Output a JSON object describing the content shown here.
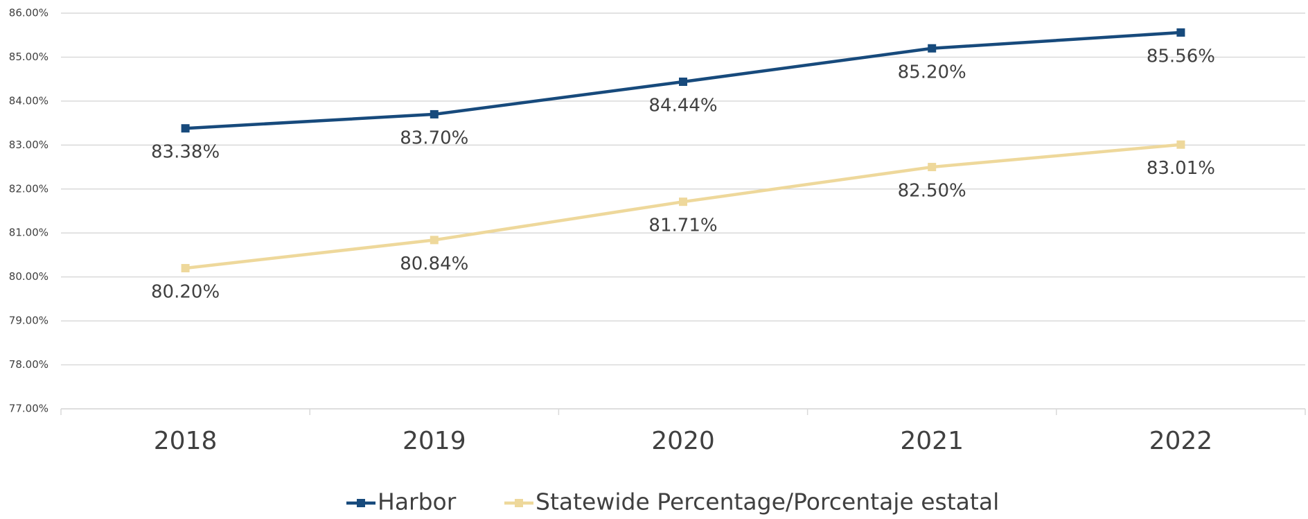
{
  "chart_data": {
    "type": "line",
    "categories": [
      "2018",
      "2019",
      "2020",
      "2021",
      "2022"
    ],
    "series": [
      {
        "name": "Harbor",
        "color": "#174a7c",
        "values": [
          83.38,
          83.7,
          84.44,
          85.2,
          85.56
        ],
        "value_labels": [
          "83.38%",
          "83.70%",
          "84.44%",
          "85.20%",
          "85.56%"
        ]
      },
      {
        "name": "Statewide Percentage/Porcentaje estatal",
        "color": "#eed89b",
        "values": [
          80.2,
          80.84,
          81.71,
          82.5,
          83.01
        ],
        "value_labels": [
          "80.20%",
          "80.84%",
          "81.71%",
          "82.50%",
          "83.01%"
        ]
      }
    ],
    "ylim": [
      77,
      86
    ],
    "yticks": [
      {
        "value": 77,
        "label": "77.00%"
      },
      {
        "value": 78,
        "label": "78.00%"
      },
      {
        "value": 79,
        "label": "79.00%"
      },
      {
        "value": 80,
        "label": "80.00%"
      },
      {
        "value": 81,
        "label": "81.00%"
      },
      {
        "value": 82,
        "label": "82.00%"
      },
      {
        "value": 83,
        "label": "83.00%"
      },
      {
        "value": 84,
        "label": "84.00%"
      },
      {
        "value": 85,
        "label": "85.00%"
      },
      {
        "value": 86,
        "label": "86.00%"
      }
    ],
    "grid": true,
    "legend": "bottom"
  }
}
